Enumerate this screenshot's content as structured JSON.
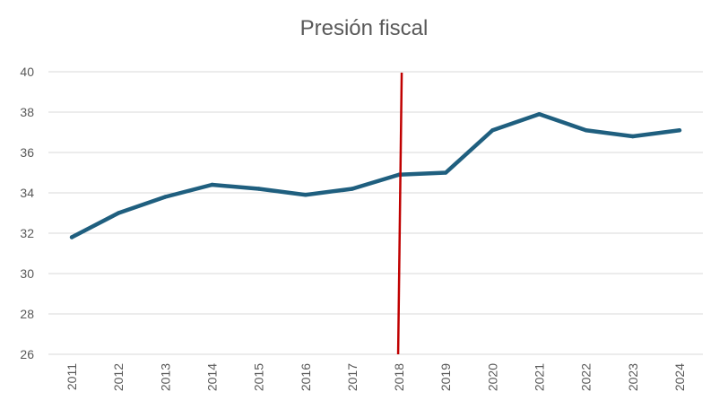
{
  "chart_data": {
    "type": "line",
    "title": "Presión fiscal",
    "xlabel": "",
    "ylabel": "",
    "categories": [
      "2011",
      "2012",
      "2013",
      "2014",
      "2015",
      "2016",
      "2017",
      "2018",
      "2019",
      "2020",
      "2021",
      "2022",
      "2023",
      "2024"
    ],
    "series": [
      {
        "values": [
          31.8,
          33.0,
          33.8,
          34.4,
          34.2,
          33.9,
          34.2,
          34.9,
          35.0,
          37.1,
          37.9,
          37.1,
          36.8,
          37.1
        ],
        "color": "#1f5f7f"
      }
    ],
    "ylim": [
      26,
      40
    ],
    "yticks": [
      26,
      28,
      30,
      32,
      34,
      36,
      38,
      40
    ],
    "grid": "horizontal",
    "legend": "none",
    "reference_line": {
      "x": "2018",
      "color": "#c00000"
    }
  }
}
